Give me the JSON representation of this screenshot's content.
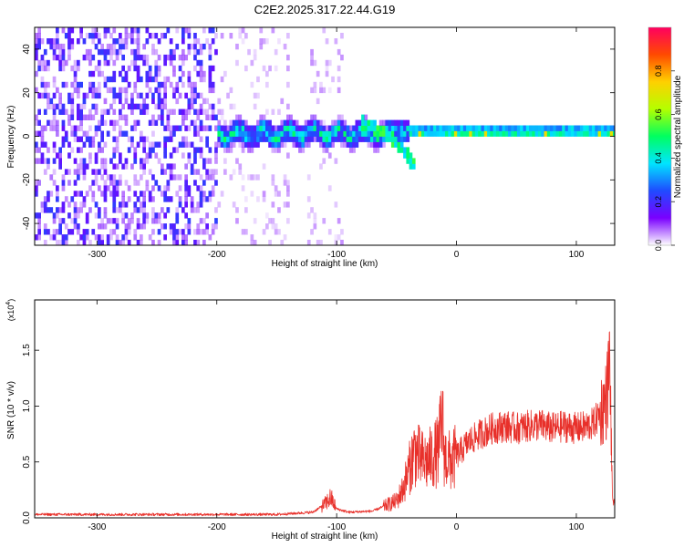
{
  "title": "C2E2.2025.317.22.44.G19",
  "colors": {
    "snr_line": "#e8302a",
    "axis": "#000000"
  },
  "chart_data": [
    {
      "type": "heatmap",
      "xlabel": "Height of straight line (km)",
      "ylabel": "Frequency (Hz)",
      "xlim": [
        -352,
        132
      ],
      "ylim": [
        -50,
        50
      ],
      "xticks": [
        -300,
        -200,
        -100,
        0,
        100
      ],
      "yticks": [
        -40,
        -20,
        0,
        20,
        40
      ],
      "colorbar": {
        "label": "Normalized spectral amplitude",
        "range": [
          0,
          1
        ],
        "ticks": [
          "0.0",
          "0.2",
          "0.4",
          "0.6",
          "0.8"
        ],
        "colormap": [
          "#ffffff",
          "#7a00ff",
          "#1f4bff",
          "#00e5ff",
          "#00ff60",
          "#b4ff00",
          "#ffd000",
          "#ff4a00",
          "#ff0060"
        ]
      },
      "features": [
        {
          "name": "noise",
          "x_range": [
            -352,
            -200
          ],
          "amplitude": 0.18
        },
        {
          "name": "sparse",
          "x_range": [
            -200,
            -70
          ],
          "amplitude": 0.08
        },
        {
          "name": "signal",
          "x_range": [
            -200,
            132
          ],
          "center_freq": 0,
          "bandwidth": 6,
          "amplitude": 0.75
        },
        {
          "name": "arc",
          "x": [
            -80,
            -60,
            -45,
            -35
          ],
          "freq": [
            5,
            0,
            -8,
            -16
          ]
        }
      ]
    },
    {
      "type": "line",
      "xlabel": "Height of straight line (km)",
      "ylabel": "SNR (10 * v/v)",
      "yscale_label_base": "(x10",
      "yscale_label_exp": "4",
      "yscale_label_end": ")",
      "xlim": [
        -352,
        132
      ],
      "ylim": [
        0,
        1.95
      ],
      "xticks": [
        -300,
        -200,
        -100,
        0,
        100
      ],
      "yticks": [
        "0.0",
        "0.5",
        "1.0",
        "1.5"
      ],
      "ytick_values": [
        0,
        0.5,
        1.0,
        1.5
      ],
      "series": [
        {
          "x": [
            -352,
            -300,
            -200,
            -150,
            -120,
            -110,
            -105,
            -100,
            -90,
            -70,
            -50,
            -45,
            -40,
            -35,
            -30,
            -25,
            -20,
            -15,
            -12,
            -10,
            -5,
            0,
            10,
            20,
            30,
            40,
            50,
            60,
            70,
            80,
            90,
            100,
            110,
            115,
            120,
            125,
            128,
            130,
            132
          ],
          "y": [
            0.03,
            0.03,
            0.03,
            0.03,
            0.05,
            0.12,
            0.18,
            0.08,
            0.05,
            0.06,
            0.15,
            0.25,
            0.42,
            0.6,
            0.52,
            0.5,
            0.55,
            0.6,
            0.9,
            0.55,
            0.5,
            0.55,
            0.68,
            0.75,
            0.8,
            0.82,
            0.8,
            0.82,
            0.83,
            0.8,
            0.82,
            0.8,
            0.82,
            0.85,
            0.95,
            1.05,
            1.4,
            0.2,
            0.1
          ]
        }
      ]
    }
  ]
}
